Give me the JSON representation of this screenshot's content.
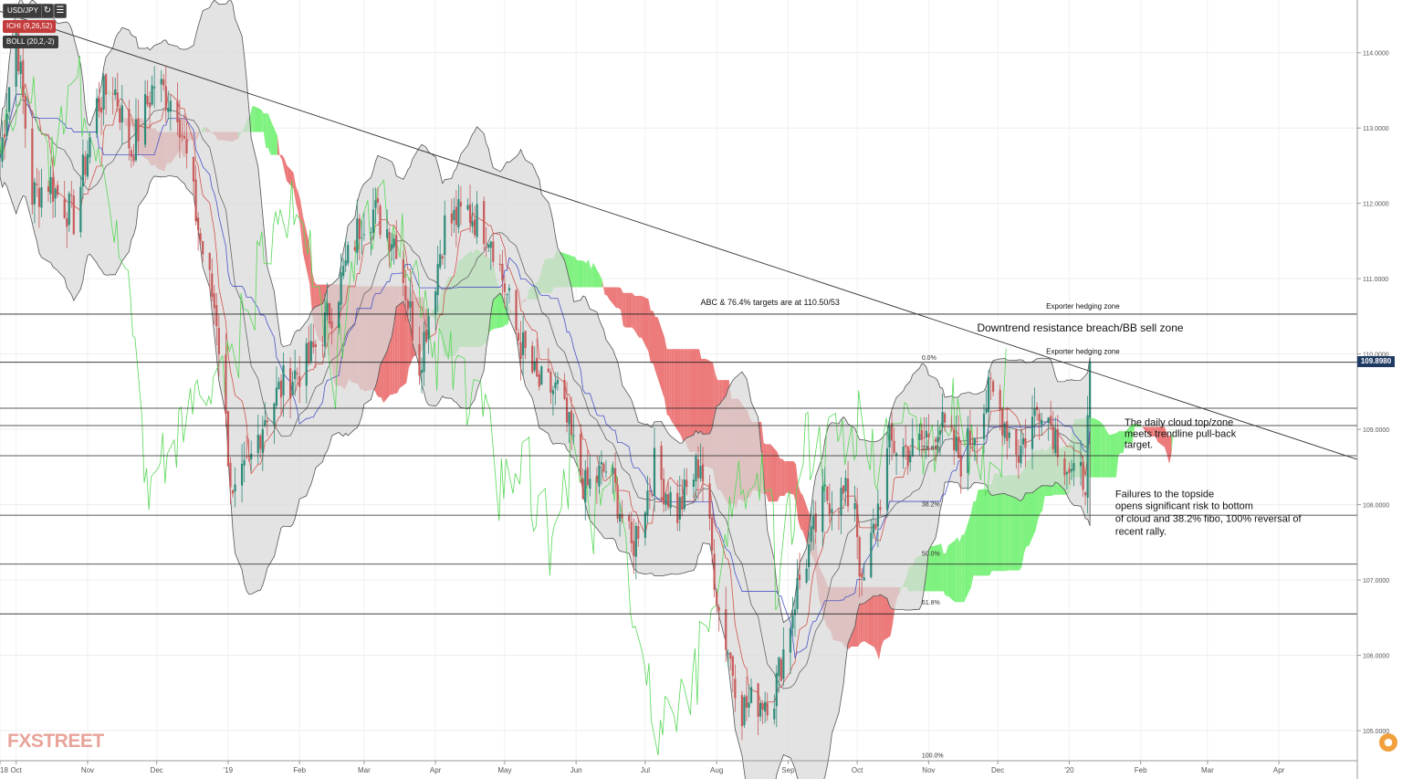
{
  "toolbar": {
    "symbol": "USD/JPY",
    "ichimoku": "ICHI (9,26,52)",
    "bollinger": "BOLL (20,2,-2)",
    "refresh_icon": "↻",
    "list_icon": "☰"
  },
  "brand": {
    "logo_text": "FXSTREET"
  },
  "chat_icon": "●",
  "colors": {
    "cloud_bull": "#7ef27e",
    "cloud_bear": "#ec7a7a",
    "bollinger_fill": "#d9d9d9",
    "badge": "#1e3a63",
    "bull_candle": "#2e8b7a",
    "bear_candle": "#c85a5a"
  },
  "chart_data": {
    "type": "candlestick",
    "symbol": "USD/JPY",
    "y_axis": {
      "range": [
        104.6,
        114.7
      ],
      "ticks": [
        "114.0000",
        "113.0000",
        "112.0000",
        "111.0000",
        "110.0000",
        "109.0000",
        "108.0000",
        "107.0000",
        "106.0000",
        "105.0000"
      ]
    },
    "x_axis": {
      "labels": [
        "18",
        "Oct",
        "Nov",
        "Dec",
        "'19",
        "Feb",
        "Mar",
        "Apr",
        "May",
        "Jun",
        "Jul",
        "Aug",
        "Sep",
        "Oct",
        "Nov",
        "Dec",
        "'20",
        "Feb",
        "Mar",
        "Apr"
      ],
      "label_dates": [
        "2018-09-24",
        "2018-10-01",
        "2018-11-01",
        "2018-12-01",
        "2019-01-01",
        "2019-02-01",
        "2019-03-01",
        "2019-04-01",
        "2019-05-01",
        "2019-06-01",
        "2019-07-01",
        "2019-08-01",
        "2019-09-01",
        "2019-10-01",
        "2019-11-01",
        "2019-12-01",
        "2020-01-01",
        "2020-02-01",
        "2020-03-01",
        "2020-04-01"
      ],
      "range": [
        "2018-09-24",
        "2020-05-05"
      ]
    },
    "last_price": "109.8980",
    "price_series": [
      [
        "2018-09-24",
        112.6
      ],
      [
        "2018-10-01",
        114.3
      ],
      [
        "2018-10-08",
        112.1
      ],
      [
        "2018-10-15",
        112.3
      ],
      [
        "2018-10-26",
        111.8
      ],
      [
        "2018-11-05",
        113.3
      ],
      [
        "2018-11-12",
        113.6
      ],
      [
        "2018-11-20",
        112.7
      ],
      [
        "2018-11-30",
        113.6
      ],
      [
        "2018-12-10",
        113.3
      ],
      [
        "2018-12-20",
        111.5
      ],
      [
        "2018-12-27",
        110.5
      ],
      [
        "2019-01-03",
        108.0
      ],
      [
        "2019-01-10",
        108.5
      ],
      [
        "2019-01-17",
        109.2
      ],
      [
        "2019-01-25",
        109.6
      ],
      [
        "2019-02-05",
        109.9
      ],
      [
        "2019-02-15",
        110.6
      ],
      [
        "2019-02-28",
        111.8
      ],
      [
        "2019-03-05",
        111.9
      ],
      [
        "2019-03-15",
        111.5
      ],
      [
        "2019-03-25",
        109.9
      ],
      [
        "2019-04-05",
        111.7
      ],
      [
        "2019-04-15",
        111.9
      ],
      [
        "2019-04-25",
        111.6
      ],
      [
        "2019-05-06",
        110.3
      ],
      [
        "2019-05-15",
        109.6
      ],
      [
        "2019-05-24",
        109.5
      ],
      [
        "2019-06-05",
        108.2
      ],
      [
        "2019-06-15",
        108.5
      ],
      [
        "2019-06-25",
        107.4
      ],
      [
        "2019-07-05",
        108.5
      ],
      [
        "2019-07-15",
        107.9
      ],
      [
        "2019-07-25",
        108.6
      ],
      [
        "2019-08-02",
        106.6
      ],
      [
        "2019-08-12",
        105.3
      ],
      [
        "2019-08-26",
        105.5
      ],
      [
        "2019-09-05",
        106.9
      ],
      [
        "2019-09-17",
        108.1
      ],
      [
        "2019-09-30",
        108.1
      ],
      [
        "2019-10-03",
        106.8
      ],
      [
        "2019-10-15",
        108.8
      ],
      [
        "2019-10-25",
        108.7
      ],
      [
        "2019-11-05",
        109.1
      ],
      [
        "2019-11-15",
        108.6
      ],
      [
        "2019-11-28",
        109.5
      ],
      [
        "2019-12-10",
        108.7
      ],
      [
        "2019-12-20",
        109.4
      ],
      [
        "2020-01-03",
        108.3
      ],
      [
        "2020-01-08",
        108.4
      ],
      [
        "2020-01-10",
        109.6
      ],
      [
        "2020-01-12",
        109.9
      ]
    ],
    "trendline": {
      "from": [
        "2018-09-24",
        114.55
      ],
      "to": [
        "2020-05-05",
        108.6
      ]
    },
    "horizontal_levels": [
      110.53,
      109.89,
      109.28,
      109.05,
      108.65,
      107.86,
      107.21,
      106.55
    ],
    "fibonacci": [
      {
        "label": "0.0%",
        "value": 109.9,
        "date": "2019-10-29"
      },
      {
        "label": "23.6%",
        "value": 108.7,
        "date": "2019-10-29"
      },
      {
        "label": "38.2%",
        "value": 107.95,
        "date": "2019-10-29"
      },
      {
        "label": "50.0%",
        "value": 107.3,
        "date": "2019-10-29"
      },
      {
        "label": "61.8%",
        "value": 106.65,
        "date": "2019-10-29"
      },
      {
        "label": "100.0%",
        "value": 104.62,
        "date": "2019-10-29"
      }
    ],
    "annotations": [
      {
        "text": "ABC & 76.4% targets are at 110.50/53",
        "date": "2019-07-25",
        "value": 110.65,
        "size": 9
      },
      {
        "text": "Exporter hedging zone",
        "date": "2019-12-22",
        "value": 110.6,
        "size": 8
      },
      {
        "text": "Downtrend resistance breach/BB sell zone",
        "date": "2019-11-22",
        "value": 110.3,
        "size": 12
      },
      {
        "text": "Exporter hedging zone",
        "date": "2019-12-22",
        "value": 110.0,
        "size": 8
      },
      {
        "text": "The daily cloud top/zone",
        "date": "2020-01-25",
        "value": 109.05,
        "size": 11
      },
      {
        "text": "meets trendline pull-back",
        "date": "2020-01-25",
        "value": 108.9,
        "size": 11
      },
      {
        "text": "target.",
        "date": "2020-01-25",
        "value": 108.75,
        "size": 11
      },
      {
        "text": "Failures to the topside",
        "date": "2020-01-21",
        "value": 108.1,
        "size": 11
      },
      {
        "text": "opens significant risk to bottom",
        "date": "2020-01-21",
        "value": 107.94,
        "size": 11
      },
      {
        "text": "of cloud and 38.2% fibo, 100% reversal of",
        "date": "2020-01-21",
        "value": 107.77,
        "size": 11
      },
      {
        "text": "recent rally.",
        "date": "2020-01-21",
        "value": 107.6,
        "size": 11
      }
    ]
  }
}
